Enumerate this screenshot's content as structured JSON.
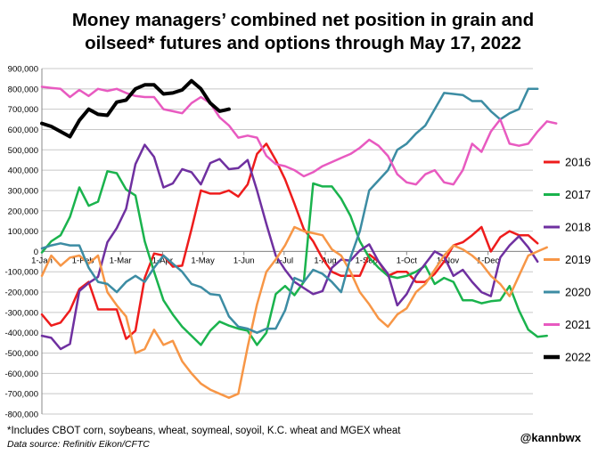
{
  "title_line1": "Money managers’ combined net position in grain and",
  "title_line2": "oilseed* futures and options through May 17, 2022",
  "footnote": "*Includes CBOT corn, soybeans, wheat, soymeal, soyoil, K.C. wheat and MGEX wheat",
  "source": "Data source: Refinitiv Eikon/CFTC",
  "handle": "@kannbwx",
  "chart_data": {
    "type": "line",
    "x_unit": "week of year (1-52)",
    "ylim": [
      -800000,
      900000
    ],
    "yticks": [
      -800000,
      -700000,
      -600000,
      -500000,
      -400000,
      -300000,
      -200000,
      -100000,
      0,
      100000,
      200000,
      300000,
      400000,
      500000,
      600000,
      700000,
      800000,
      900000
    ],
    "ytick_labels": [
      "-800,000",
      "-700,000",
      "-600,000",
      "-500,000",
      "-400,000",
      "-300,000",
      "-200,000",
      "-100,000",
      "0",
      "100,000",
      "200,000",
      "300,000",
      "400,000",
      "500,000",
      "600,000",
      "700,000",
      "800,000",
      "900,000"
    ],
    "month_labels": [
      {
        "label": "1-Jan",
        "week": 1
      },
      {
        "label": "1-Feb",
        "week": 5.4
      },
      {
        "label": "1-Mar",
        "week": 9.4
      },
      {
        "label": "1-Apr",
        "week": 13.9
      },
      {
        "label": "1-May",
        "week": 18.2
      },
      {
        "label": "1-Jun",
        "week": 22.6
      },
      {
        "label": "1-Jul",
        "week": 26.9
      },
      {
        "label": "1-Aug",
        "week": 31.3
      },
      {
        "label": "1-Sep",
        "week": 35.7
      },
      {
        "label": "1-Oct",
        "week": 40.0
      },
      {
        "label": "1-Nov",
        "week": 44.4
      },
      {
        "label": "1-Dec",
        "week": 48.7
      }
    ],
    "grid": true,
    "legend_position": "right",
    "series": [
      {
        "name": "2016",
        "color": "#ee1c1c",
        "width": 2.5,
        "values": [
          -310000,
          -365000,
          -350000,
          -290000,
          -185000,
          -150000,
          -285000,
          -285000,
          -285000,
          -430000,
          -390000,
          -130000,
          -10000,
          -20000,
          -75000,
          -70000,
          110000,
          300000,
          285000,
          285000,
          300000,
          270000,
          330000,
          480000,
          530000,
          450000,
          355000,
          235000,
          110000,
          50000,
          -35000,
          -100000,
          -120000,
          -120000,
          -120000,
          -15000,
          -50000,
          -120000,
          -100000,
          -100000,
          -150000,
          -150000,
          -110000,
          -50000,
          30000,
          45000,
          80000,
          120000,
          0,
          70000,
          100000,
          80000,
          80000,
          40000
        ]
      },
      {
        "name": "2017",
        "color": "#1ab34d",
        "width": 2.5,
        "values": [
          -5000,
          50000,
          80000,
          170000,
          315000,
          225000,
          245000,
          395000,
          385000,
          305000,
          275000,
          50000,
          -100000,
          -240000,
          -310000,
          -370000,
          -415000,
          -460000,
          -390000,
          -345000,
          -365000,
          -380000,
          -390000,
          -460000,
          -400000,
          -210000,
          -170000,
          -215000,
          -150000,
          335000,
          320000,
          320000,
          260000,
          175000,
          50000,
          -30000,
          -80000,
          -120000,
          -130000,
          -120000,
          -100000,
          -70000,
          -160000,
          -130000,
          -150000,
          -240000,
          -240000,
          -255000,
          -245000,
          -240000,
          -170000,
          -290000,
          -385000,
          -420000,
          -415000
        ]
      },
      {
        "name": "2018",
        "color": "#6f30a0",
        "width": 2.5,
        "values": [
          -415000,
          -425000,
          -480000,
          -455000,
          -195000,
          -155000,
          -125000,
          45000,
          115000,
          210000,
          430000,
          525000,
          465000,
          315000,
          335000,
          405000,
          390000,
          330000,
          435000,
          455000,
          405000,
          410000,
          450000,
          300000,
          135000,
          -20000,
          -90000,
          -150000,
          -180000,
          -210000,
          -195000,
          -80000,
          -40000,
          -45000,
          5000,
          35000,
          -50000,
          -110000,
          -265000,
          -210000,
          -120000,
          -60000,
          0,
          -25000,
          -120000,
          -90000,
          -150000,
          -200000,
          -220000,
          -30000,
          30000,
          75000,
          20000,
          -50000
        ]
      },
      {
        "name": "2019",
        "color": "#f79646",
        "width": 2.5,
        "values": [
          -120000,
          -20000,
          -70000,
          -30000,
          -20000,
          -60000,
          -20000,
          -200000,
          -265000,
          -320000,
          -500000,
          -480000,
          -385000,
          -460000,
          -440000,
          -540000,
          -600000,
          -650000,
          -680000,
          -700000,
          -720000,
          -700000,
          -470000,
          -260000,
          -100000,
          -40000,
          30000,
          120000,
          100000,
          90000,
          80000,
          10000,
          -20000,
          -100000,
          -200000,
          -260000,
          -330000,
          -370000,
          -310000,
          -280000,
          -200000,
          -160000,
          -90000,
          -20000,
          30000,
          10000,
          -20000,
          -60000,
          -120000,
          -160000,
          -220000,
          -120000,
          -20000,
          0,
          20000
        ]
      },
      {
        "name": "2020",
        "color": "#3c8ca3",
        "width": 2.5,
        "values": [
          15000,
          30000,
          40000,
          30000,
          30000,
          -80000,
          -150000,
          -160000,
          -200000,
          -150000,
          -120000,
          -150000,
          -80000,
          -20000,
          -60000,
          -100000,
          -160000,
          -175000,
          -210000,
          -215000,
          -320000,
          -370000,
          -380000,
          -400000,
          -380000,
          -380000,
          -290000,
          -130000,
          -150000,
          -90000,
          -110000,
          -150000,
          -200000,
          -30000,
          100000,
          300000,
          350000,
          400000,
          500000,
          530000,
          580000,
          620000,
          700000,
          780000,
          775000,
          770000,
          740000,
          740000,
          690000,
          650000,
          680000,
          700000,
          800000,
          800000
        ]
      },
      {
        "name": "2021",
        "color": "#e85ac0",
        "width": 2.5,
        "values": [
          810000,
          805000,
          800000,
          760000,
          795000,
          765000,
          800000,
          790000,
          800000,
          780000,
          765000,
          760000,
          760000,
          700000,
          690000,
          680000,
          730000,
          760000,
          730000,
          660000,
          620000,
          560000,
          570000,
          560000,
          470000,
          430000,
          420000,
          400000,
          370000,
          390000,
          420000,
          440000,
          460000,
          480000,
          510000,
          550000,
          520000,
          470000,
          380000,
          340000,
          330000,
          380000,
          400000,
          340000,
          330000,
          400000,
          530000,
          490000,
          590000,
          650000,
          530000,
          520000,
          530000,
          590000,
          640000,
          630000
        ]
      },
      {
        "name": "2022",
        "color": "#000000",
        "width": 4,
        "values": [
          630000,
          615000,
          590000,
          565000,
          645000,
          700000,
          675000,
          670000,
          735000,
          745000,
          800000,
          820000,
          820000,
          775000,
          780000,
          795000,
          840000,
          800000,
          730000,
          690000,
          700000
        ]
      }
    ]
  }
}
